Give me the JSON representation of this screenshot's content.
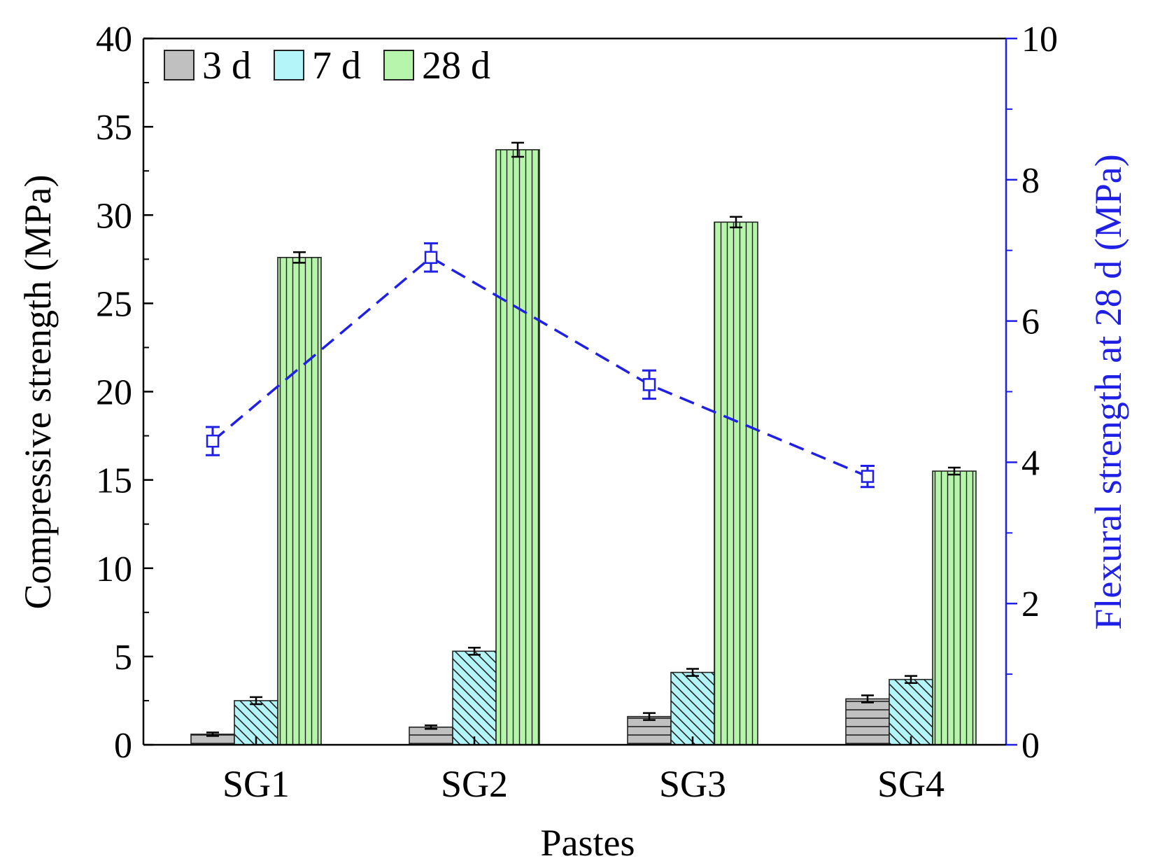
{
  "chart_data": {
    "type": "bar",
    "xlabel": "Pastes",
    "ylabel": "Compressive strength (MPa)",
    "y2label": "Flexural strength at 28 d (MPa)",
    "categories": [
      "SG1",
      "SG2",
      "SG3",
      "SG4"
    ],
    "ylim": [
      0,
      40
    ],
    "yticks": [
      0,
      5,
      10,
      15,
      20,
      25,
      30,
      35,
      40
    ],
    "ytick_labels": [
      "0",
      "5",
      "10",
      "15",
      "20",
      "25",
      "30",
      "35",
      "40"
    ],
    "y2lim": [
      0,
      10
    ],
    "y2ticks": [
      0,
      2,
      4,
      6,
      8,
      10
    ],
    "y2tick_labels": [
      "0",
      "2",
      "4",
      "6",
      "8",
      "10"
    ],
    "legend_position": "top-left",
    "series": [
      {
        "name": "3 d",
        "color": "#c0c0c0",
        "pattern": "horizontal-lines",
        "values": [
          0.6,
          1.0,
          1.6,
          2.6
        ],
        "errors": [
          0.1,
          0.1,
          0.2,
          0.2
        ]
      },
      {
        "name": "7 d",
        "color": "#b3f5f8",
        "pattern": "diagonal-lines",
        "values": [
          2.5,
          5.3,
          4.1,
          3.7
        ],
        "errors": [
          0.2,
          0.2,
          0.2,
          0.2
        ]
      },
      {
        "name": "28 d",
        "color": "#b6f5ab",
        "pattern": "vertical-lines",
        "values": [
          27.6,
          33.7,
          29.6,
          15.5
        ],
        "errors": [
          0.3,
          0.4,
          0.3,
          0.2
        ]
      }
    ],
    "line_series": {
      "name": "Flexural strength at 28 d",
      "axis": "right",
      "color": "#1f1fe6",
      "style": "dashed",
      "marker": "open-square",
      "values": [
        4.3,
        6.9,
        5.1,
        3.8
      ],
      "errors": [
        0.2,
        0.2,
        0.2,
        0.15
      ]
    },
    "colors": {
      "axis": "#000000",
      "right_axis": "#1f1fe6"
    }
  }
}
